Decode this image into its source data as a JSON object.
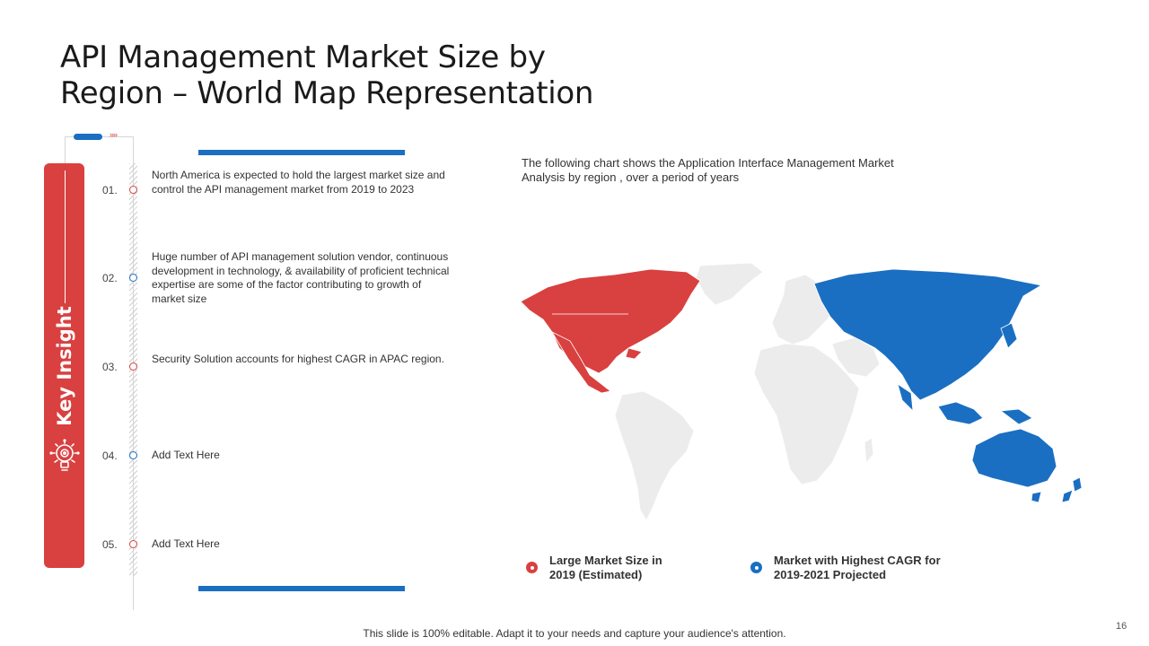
{
  "title_line1": "API Management Market Size by",
  "title_line2": "Region – World Map Representation",
  "key_insight_label": "Key Insight",
  "items": [
    {
      "num": "01.",
      "text": "North America is expected to hold the largest market size and control the API management  market from 2019 to 2023",
      "dot": "#d84040"
    },
    {
      "num": "02.",
      "text": "Huge number  of API management  solution vendor, continuous development  in technology, & availability  of proficient technical expertise  are  some of the factor contributing to growth of market size",
      "dot": "#1a6fc2"
    },
    {
      "num": "03.",
      "text": "Security Solution accounts for highest CAGR in APAC region.",
      "dot": "#d84040"
    },
    {
      "num": "04.",
      "text": "Add Text Here",
      "dot": "#1a6fc2"
    },
    {
      "num": "05.",
      "text": "Add Text Here",
      "dot": "#d84040"
    }
  ],
  "chart_description": " The following chart shows the Application Interface Management Market Analysis by region , over a period of years",
  "legend": [
    {
      "line1": "Large Market Size in",
      "line2": "2019 (Estimated)",
      "color": "#d94040"
    },
    {
      "line1": "Market with Highest CAGR for",
      "line2": "2019-2021 Projected",
      "color": "#1a6fc2"
    }
  ],
  "map_colors": {
    "north_america": "#d94040",
    "asia_pacific": "#1a6fc2",
    "rest_of_world": "#ececec"
  },
  "footer": "This slide is 100% editable. Adapt it to your needs and capture your audience's attention.",
  "page_number": "16",
  "icons": {
    "key_insight": "lightbulb-gear-icon",
    "chevrons": "chevron-right-icon"
  }
}
